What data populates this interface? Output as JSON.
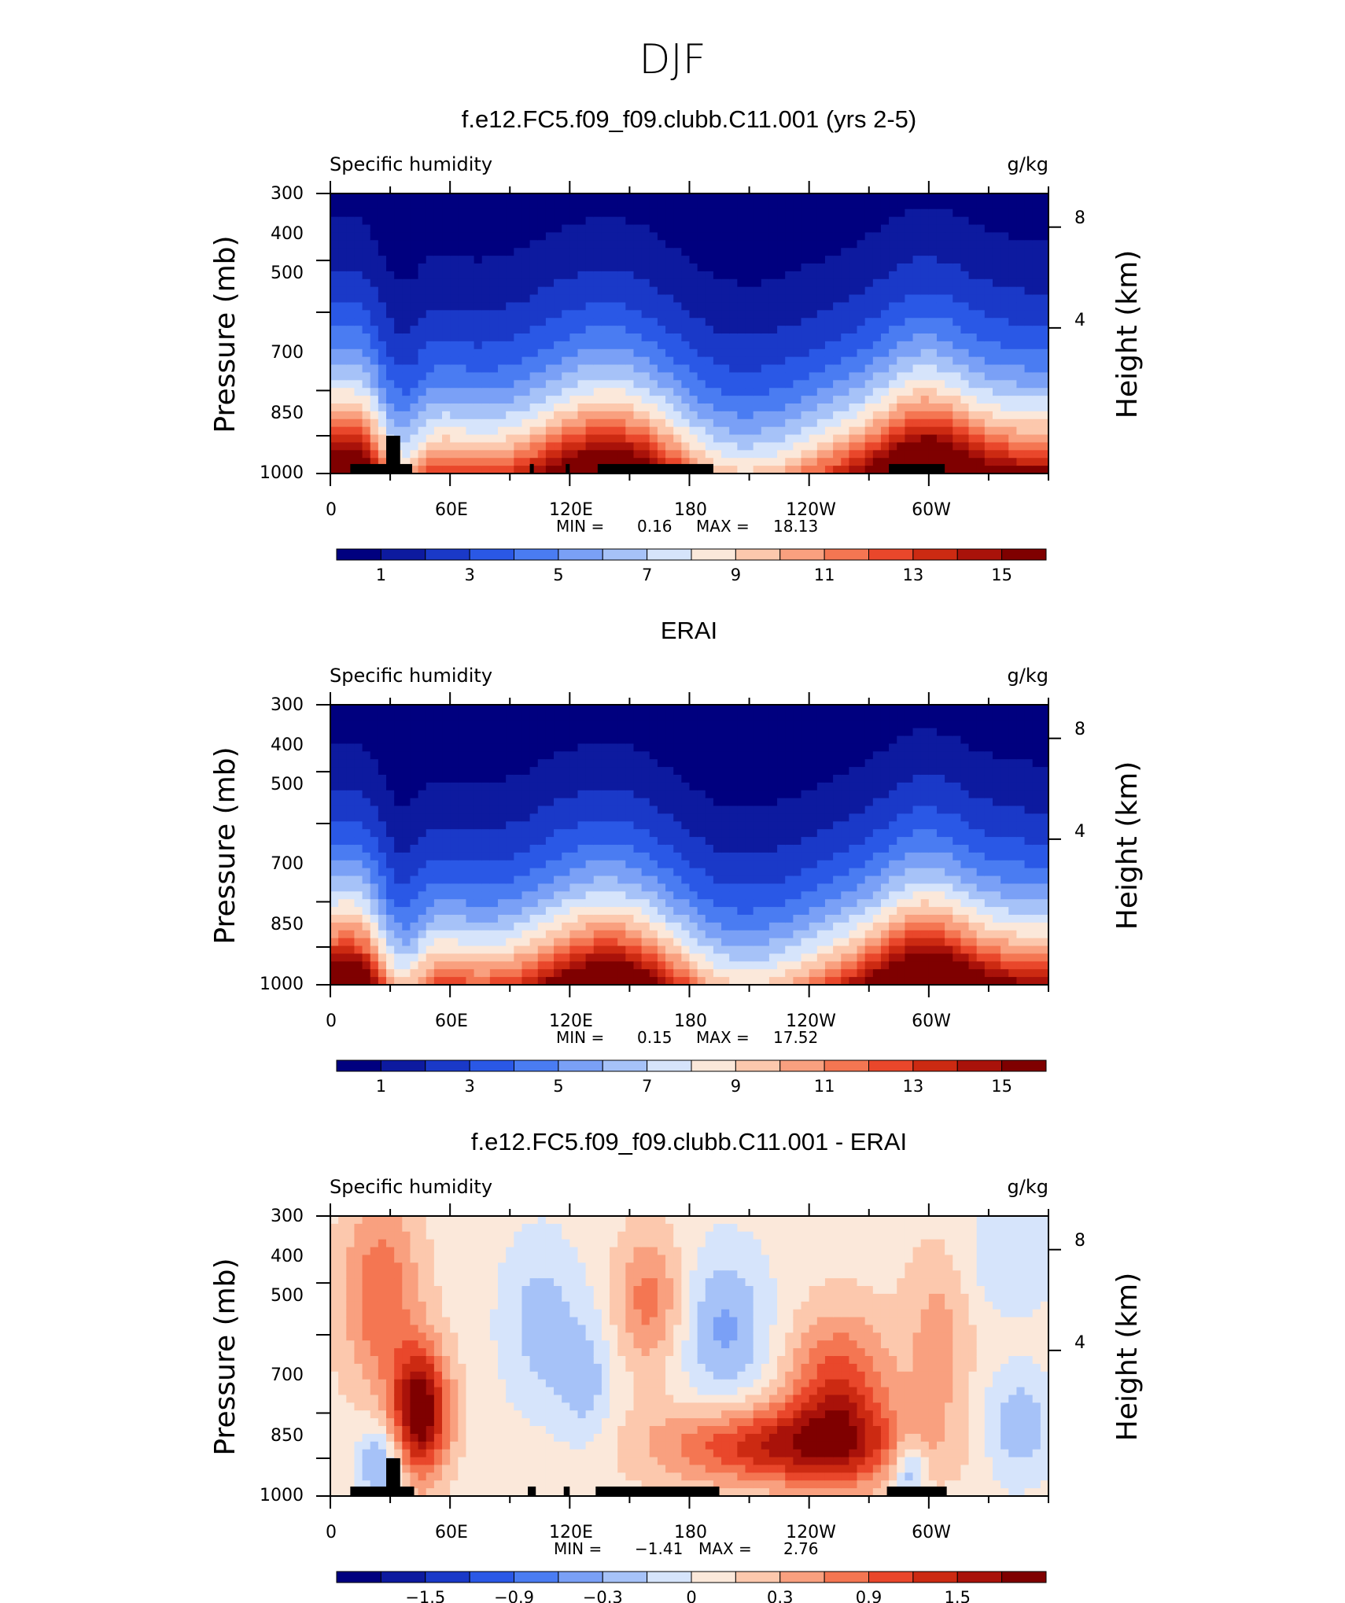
{
  "figure": {
    "title": "DJF"
  },
  "colors": {
    "positive_15": [
      "#00007f",
      "#0d1a9f",
      "#1a39c8",
      "#2a58e6",
      "#4a7cf2",
      "#7aa0f6",
      "#a6c2f8",
      "#d6e4fb",
      "#fbe8da",
      "#fcc8ad",
      "#f9a07f",
      "#f47652",
      "#e9472b",
      "#cc2a12",
      "#a9120a",
      "#7f0000"
    ],
    "black_mask": "#000000"
  },
  "chart_data": [
    {
      "type": "heatmap",
      "panel_title": "f.e12.FC5.f09_f09.clubb.C11.001 (yrs 2-5)",
      "left_title": "Specific humidity",
      "units": "g/kg",
      "ylabel": "Pressure (mb)",
      "y2label": "Height (km)",
      "ylim": [
        1000,
        300
      ],
      "yticks": [
        "300",
        "400",
        "500",
        "700",
        "850",
        "1000"
      ],
      "y2ticks": [
        "8",
        "4"
      ],
      "xticks": [
        "0",
        "60E",
        "120E",
        "180",
        "120W",
        "60W"
      ],
      "stats": {
        "min_label": "MIN =",
        "min": "0.16",
        "max_label": "MAX =",
        "max": "18.13"
      },
      "colorbar_labels": [
        "1",
        "3",
        "5",
        "7",
        "9",
        "11",
        "13",
        "15"
      ],
      "mask": [
        {
          "lon0": 10,
          "lon1": 41,
          "p": 960
        },
        {
          "lon0": 28,
          "lon1": 35,
          "p": 850
        },
        {
          "lon0": 100,
          "lon1": 102,
          "p": 960
        },
        {
          "lon0": 118,
          "lon1": 120,
          "p": 960
        },
        {
          "lon0": 134,
          "lon1": 192,
          "p": 960
        },
        {
          "lon0": 280,
          "lon1": 308,
          "p": 960
        }
      ]
    },
    {
      "type": "heatmap",
      "panel_title": "ERAI",
      "left_title": "Specific humidity",
      "units": "g/kg",
      "ylabel": "Pressure (mb)",
      "y2label": "Height (km)",
      "ylim": [
        1000,
        300
      ],
      "yticks": [
        "300",
        "400",
        "500",
        "700",
        "850",
        "1000"
      ],
      "y2ticks": [
        "8",
        "4"
      ],
      "xticks": [
        "0",
        "60E",
        "120E",
        "180",
        "120W",
        "60W"
      ],
      "stats": {
        "min_label": "MIN =",
        "min": "0.15",
        "max_label": "MAX =",
        "max": "17.52"
      },
      "colorbar_labels": [
        "1",
        "3",
        "5",
        "7",
        "9",
        "11",
        "13",
        "15"
      ],
      "mask": []
    },
    {
      "type": "heatmap",
      "panel_title": "f.e12.FC5.f09_f09.clubb.C11.001 - ERAI",
      "left_title": "Specific humidity",
      "units": "g/kg",
      "ylabel": "Pressure (mb)",
      "y2label": "Height (km)",
      "ylim": [
        1000,
        300
      ],
      "yticks": [
        "300",
        "400",
        "500",
        "700",
        "850",
        "1000"
      ],
      "y2ticks": [
        "8",
        "4"
      ],
      "xticks": [
        "0",
        "60E",
        "120E",
        "180",
        "120W",
        "60W"
      ],
      "stats": {
        "min_label": "MIN =",
        "min": "−1.41",
        "max_label": "MAX =",
        "max": "2.76"
      },
      "colorbar_labels": [
        "−1.5",
        "−0.9",
        "−0.3",
        "0",
        "0.3",
        "0.9",
        "1.5"
      ],
      "mask": [
        {
          "lon0": 10,
          "lon1": 42,
          "p": 960
        },
        {
          "lon0": 28,
          "lon1": 35,
          "p": 850
        },
        {
          "lon0": 99,
          "lon1": 103,
          "p": 960
        },
        {
          "lon0": 117,
          "lon1": 120,
          "p": 960
        },
        {
          "lon0": 133,
          "lon1": 195,
          "p": 960
        },
        {
          "lon0": 279,
          "lon1": 309,
          "p": 960
        }
      ]
    }
  ]
}
